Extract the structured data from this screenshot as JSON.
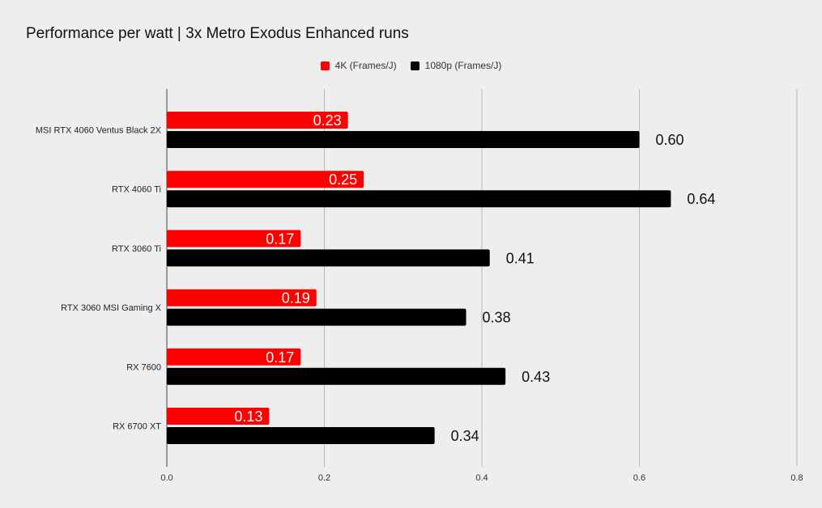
{
  "title": "Performance per watt | 3x Metro Exodus Enhanced runs",
  "chart_data": {
    "type": "bar",
    "orientation": "horizontal",
    "title": "Performance per watt | 3x Metro Exodus Enhanced runs",
    "categories": [
      "MSI RTX 4060 Ventus Black 2X",
      "RTX 4060 Ti",
      "RTX 3060 Ti",
      "RTX 3060 MSI Gaming X",
      "RX 7600",
      "RX 6700 XT"
    ],
    "series": [
      {
        "name": "4K (Frames/J)",
        "color": "#ff0000",
        "values": [
          0.23,
          0.25,
          0.17,
          0.19,
          0.17,
          0.13
        ],
        "labels": [
          "0.23",
          "0.25",
          "0.17",
          "0.19",
          "0.17",
          "0.13"
        ]
      },
      {
        "name": "1080p (Frames/J)",
        "color": "#000000",
        "values": [
          0.6,
          0.64,
          0.41,
          0.38,
          0.43,
          0.34
        ],
        "labels": [
          "0.60",
          "0.64",
          "0.41",
          "0.38",
          "0.43",
          "0.34"
        ]
      }
    ],
    "xlim": [
      0,
      0.8
    ],
    "xticks": [
      "0.0",
      "0.2",
      "0.4",
      "0.6",
      "0.8"
    ],
    "grid": true,
    "legend": "top-center",
    "xlabel": "",
    "ylabel": ""
  }
}
